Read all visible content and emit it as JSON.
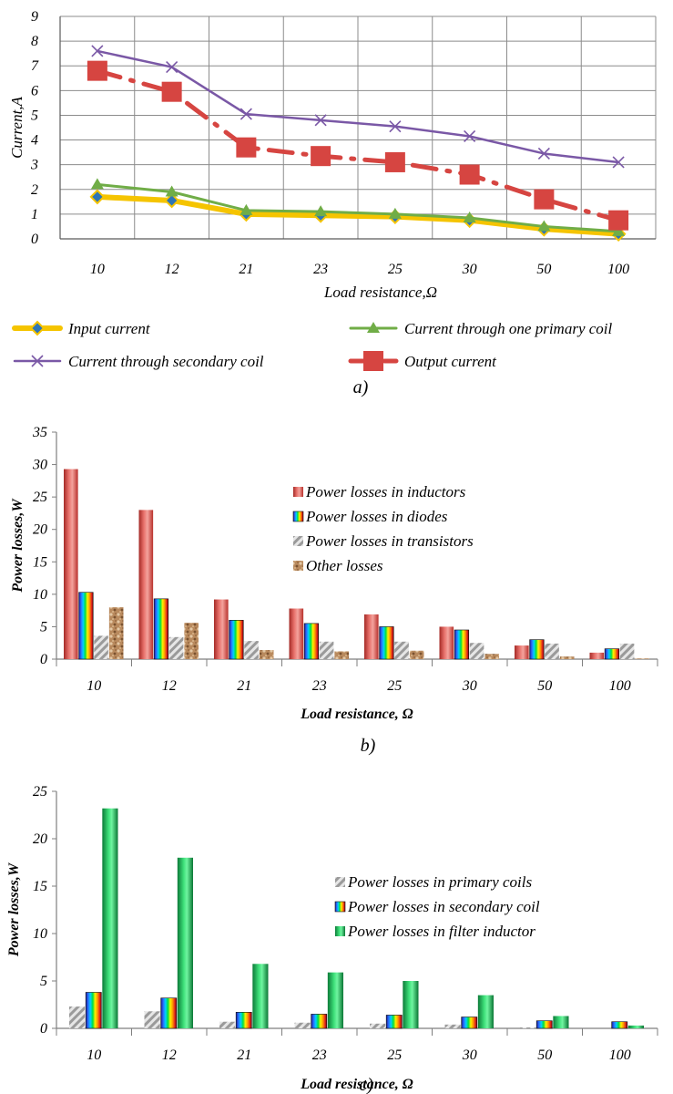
{
  "chart_data": [
    {
      "type": "line",
      "panel_label": "a)",
      "categories": [
        "10",
        "12",
        "21",
        "23",
        "25",
        "30",
        "50",
        "100"
      ],
      "xlabel": "Load resistance,Ω",
      "ylabel": "Current,A",
      "ylim": [
        0,
        9
      ],
      "yticks": [
        0,
        1,
        2,
        3,
        4,
        5,
        6,
        7,
        8,
        9
      ],
      "grid": true,
      "legend_position": "bottom",
      "series": [
        {
          "name": "Input current",
          "values": [
            1.7,
            1.55,
            1.0,
            0.95,
            0.9,
            0.75,
            0.4,
            0.2
          ],
          "color": "#f5c400",
          "marker": "diamond-icon",
          "marker_color": "#2e75b6"
        },
        {
          "name": "Current through one primary coil",
          "values": [
            2.2,
            1.9,
            1.15,
            1.1,
            1.0,
            0.85,
            0.5,
            0.3
          ],
          "color": "#70ad47",
          "marker": "triangle-icon"
        },
        {
          "name": "Current through secondary coil",
          "values": [
            7.6,
            6.95,
            5.05,
            4.8,
            4.55,
            4.15,
            3.45,
            3.1
          ],
          "color": "#7a58a6",
          "marker": "cross-icon"
        },
        {
          "name": "Output current",
          "values": [
            6.8,
            5.95,
            3.7,
            3.35,
            3.1,
            2.6,
            1.6,
            0.75
          ],
          "color": "#d64541",
          "marker": "square-icon"
        }
      ]
    },
    {
      "type": "bar",
      "panel_label": "b)",
      "categories": [
        "10",
        "12",
        "21",
        "23",
        "25",
        "30",
        "50",
        "100"
      ],
      "xlabel": "Load resistance, Ω",
      "ylabel": "Power losses,W",
      "ylim": [
        0,
        35
      ],
      "yticks": [
        0,
        5,
        10,
        15,
        20,
        25,
        30,
        35
      ],
      "grid": false,
      "legend_position": "top-right",
      "series": [
        {
          "name": "Power losses in inductors",
          "values": [
            29.3,
            23.0,
            9.2,
            7.8,
            6.9,
            5.0,
            2.1,
            1.0
          ],
          "fill": "red-gradient"
        },
        {
          "name": "Power losses in  diodes",
          "values": [
            10.3,
            9.3,
            6.0,
            5.5,
            5.0,
            4.5,
            3.0,
            1.6
          ],
          "fill": "rainbow"
        },
        {
          "name": "Power losses in transistors",
          "values": [
            3.6,
            3.4,
            2.8,
            2.7,
            2.7,
            2.5,
            2.4,
            2.4
          ],
          "fill": "gray-hatch"
        },
        {
          "name": "Other losses",
          "values": [
            8.0,
            5.6,
            1.4,
            1.2,
            1.3,
            0.8,
            0.4,
            0.1
          ],
          "fill": "brown-texture"
        }
      ]
    },
    {
      "type": "bar",
      "panel_label": "c)",
      "categories": [
        "10",
        "12",
        "21",
        "23",
        "25",
        "30",
        "50",
        "100"
      ],
      "xlabel": "Load resistance, Ω",
      "ylabel": "Power losses,W",
      "ylim": [
        0,
        25
      ],
      "yticks": [
        0,
        5,
        10,
        15,
        20,
        25
      ],
      "grid": false,
      "legend_position": "center-right",
      "series": [
        {
          "name": "Power losses in primary coils",
          "values": [
            2.3,
            1.8,
            0.7,
            0.6,
            0.5,
            0.4,
            0.1,
            0.0
          ],
          "fill": "gray-hatch"
        },
        {
          "name": "Power losses in secondary coil",
          "values": [
            3.8,
            3.2,
            1.7,
            1.5,
            1.4,
            1.2,
            0.8,
            0.7
          ],
          "fill": "rainbow"
        },
        {
          "name": "Power losses in filter inductor",
          "values": [
            23.2,
            18.0,
            6.8,
            5.9,
            5.0,
            3.5,
            1.3,
            0.3
          ],
          "fill": "green-gradient"
        }
      ]
    }
  ]
}
